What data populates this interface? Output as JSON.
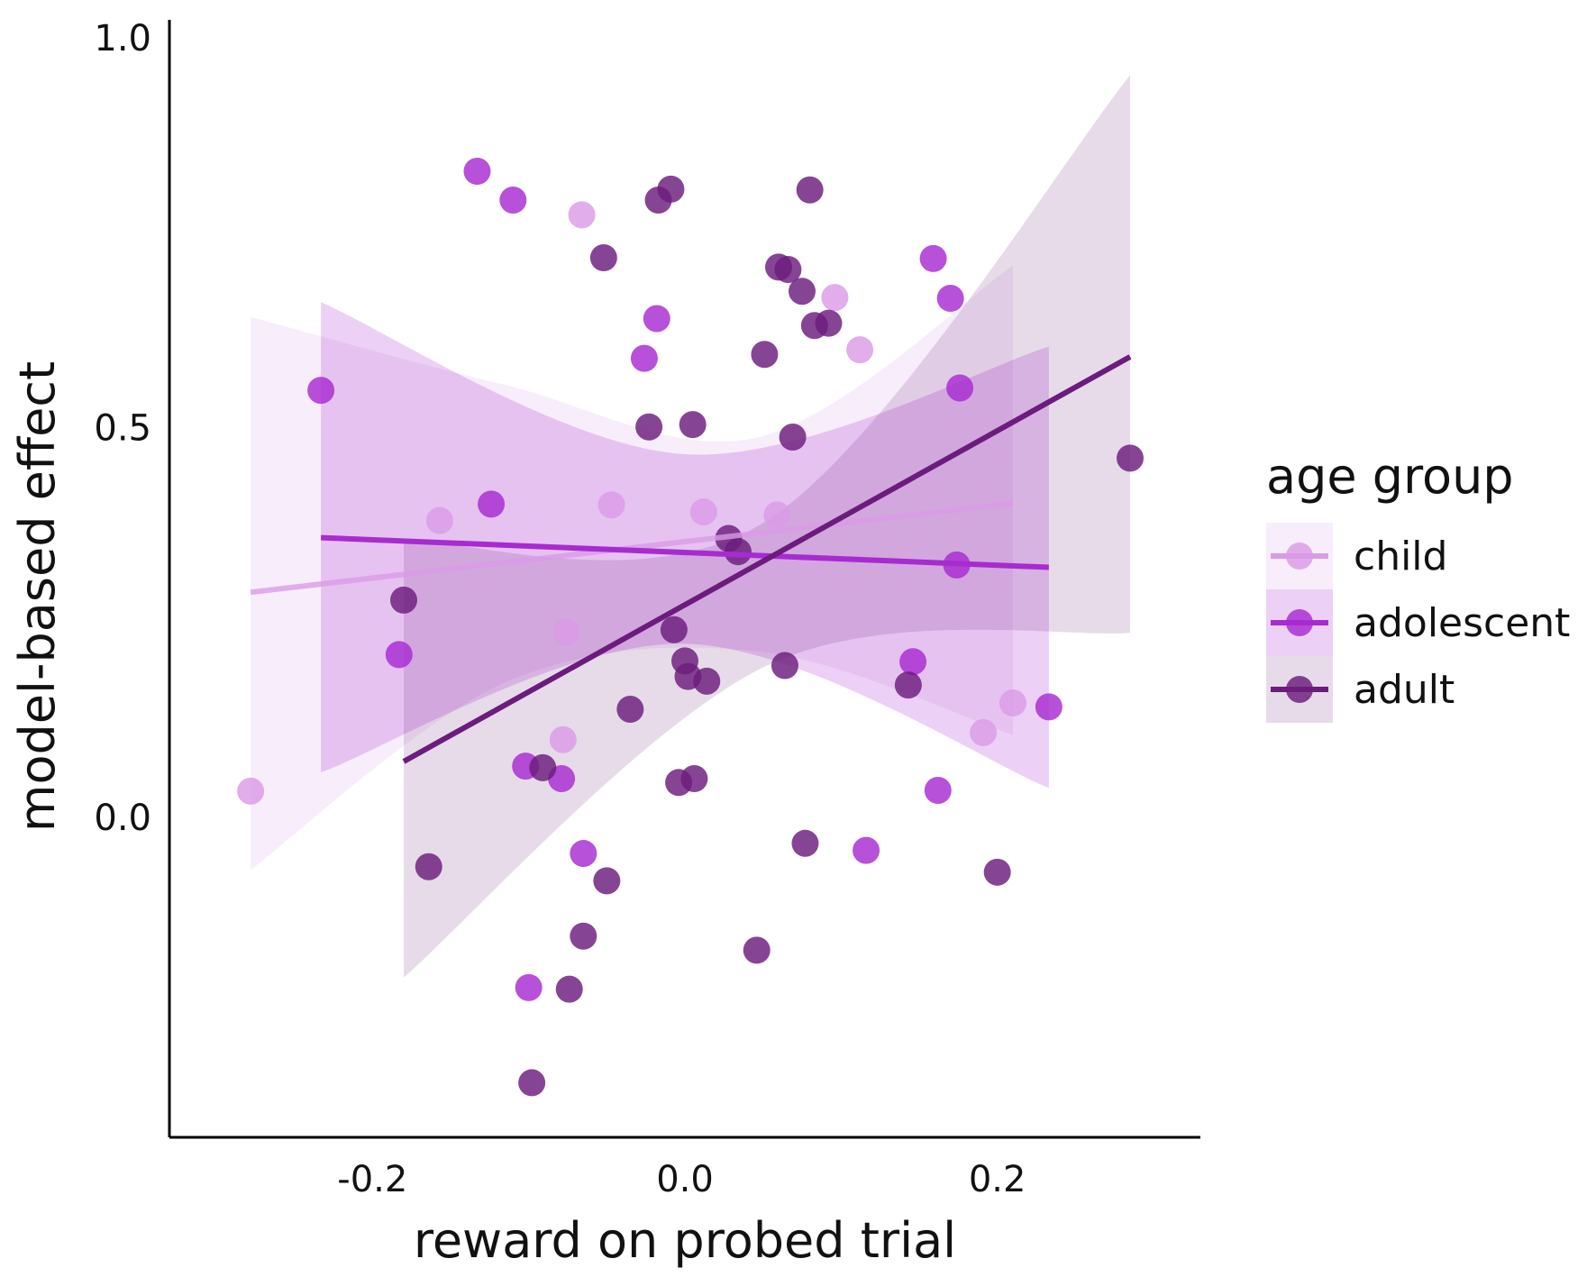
{
  "chart_data": {
    "type": "scatter",
    "xlabel": "reward on probed trial",
    "ylabel": "model-based effect",
    "xlim": [
      -0.33,
      0.33
    ],
    "ylim": [
      -0.41,
      1.0
    ],
    "x_ticks": [
      {
        "value": -0.2,
        "label": "-0.2"
      },
      {
        "value": 0.0,
        "label": "0.0"
      },
      {
        "value": 0.2,
        "label": "0.2"
      }
    ],
    "y_ticks": [
      {
        "value": 0.0,
        "label": "0.0"
      },
      {
        "value": 0.5,
        "label": "0.5"
      },
      {
        "value": 1.0,
        "label": "1.0"
      }
    ],
    "grid": false,
    "legend": {
      "title": "age group",
      "position": "right"
    },
    "series": [
      {
        "name": "child",
        "color": "#DA9BE6",
        "points": [
          [
            -0.278,
            0.034
          ],
          [
            -0.157,
            0.381
          ],
          [
            -0.066,
            0.773
          ],
          [
            -0.047,
            0.401
          ],
          [
            -0.076,
            0.238
          ],
          [
            -0.078,
            0.1
          ],
          [
            0.012,
            0.392
          ],
          [
            0.059,
            0.388
          ],
          [
            0.096,
            0.667
          ],
          [
            0.112,
            0.6
          ],
          [
            0.191,
            0.109
          ],
          [
            0.21,
            0.147
          ]
        ],
        "fit": {
          "x": [
            -0.278,
            0.21
          ],
          "y": [
            0.289,
            0.403
          ]
        },
        "ci_upper": [
          0.642,
          0.555,
          0.488,
          0.708
        ],
        "ci_lower": [
          -0.067,
          0.173,
          0.213,
          0.106
        ]
      },
      {
        "name": "adolescent",
        "color": "#A72BD1",
        "points": [
          [
            -0.233,
            0.548
          ],
          [
            -0.133,
            0.829
          ],
          [
            -0.11,
            0.792
          ],
          [
            -0.124,
            0.402
          ],
          [
            -0.183,
            0.209
          ],
          [
            -0.102,
            0.066
          ],
          [
            -0.079,
            0.05
          ],
          [
            -0.065,
            -0.046
          ],
          [
            -0.1,
            -0.218
          ],
          [
            -0.018,
            0.64
          ],
          [
            -0.026,
            0.589
          ],
          [
            0.159,
            0.717
          ],
          [
            0.17,
            0.666
          ],
          [
            0.176,
            0.551
          ],
          [
            0.174,
            0.324
          ],
          [
            0.146,
            0.2
          ],
          [
            0.162,
            0.035
          ],
          [
            0.233,
            0.142
          ],
          [
            0.116,
            -0.042
          ]
        ],
        "fit": {
          "x": [
            -0.233,
            0.233
          ],
          "y": [
            0.359,
            0.321
          ]
        },
        "ci_upper": [
          0.661,
          0.466,
          0.604
        ],
        "ci_lower": [
          0.058,
          0.223,
          0.038
        ]
      },
      {
        "name": "adult",
        "color": "#6B1C7C",
        "points": [
          [
            -0.18,
            0.279
          ],
          [
            -0.164,
            -0.063
          ],
          [
            -0.091,
            0.064
          ],
          [
            -0.052,
            0.718
          ],
          [
            -0.023,
            0.501
          ],
          [
            -0.035,
            0.139
          ],
          [
            -0.05,
            -0.081
          ],
          [
            -0.065,
            -0.152
          ],
          [
            -0.074,
            -0.22
          ],
          [
            -0.098,
            -0.34
          ],
          [
            -0.017,
            0.792
          ],
          [
            -0.009,
            0.806
          ],
          [
            -0.007,
            0.241
          ],
          [
            0.0,
            0.201
          ],
          [
            0.002,
            0.181
          ],
          [
            0.005,
            0.504
          ],
          [
            -0.004,
            0.045
          ],
          [
            0.006,
            0.05
          ],
          [
            0.014,
            0.175
          ],
          [
            0.028,
            0.358
          ],
          [
            0.034,
            0.341
          ],
          [
            0.051,
            0.594
          ],
          [
            0.046,
            -0.17
          ],
          [
            0.06,
            0.706
          ],
          [
            0.066,
            0.703
          ],
          [
            0.064,
            0.195
          ],
          [
            0.069,
            0.488
          ],
          [
            0.075,
            0.675
          ],
          [
            0.083,
            0.631
          ],
          [
            0.092,
            0.634
          ],
          [
            0.08,
            0.805
          ],
          [
            0.077,
            -0.033
          ],
          [
            0.143,
            0.17
          ],
          [
            0.2,
            -0.07
          ],
          [
            0.285,
            0.461
          ]
        ],
        "fit": {
          "x": [
            -0.18,
            0.285
          ],
          "y": [
            0.072,
            0.591
          ]
        },
        "ci_upper": [
          0.355,
          0.381,
          0.952
        ],
        "ci_lower": [
          -0.205,
          0.195,
          0.237
        ]
      }
    ]
  }
}
